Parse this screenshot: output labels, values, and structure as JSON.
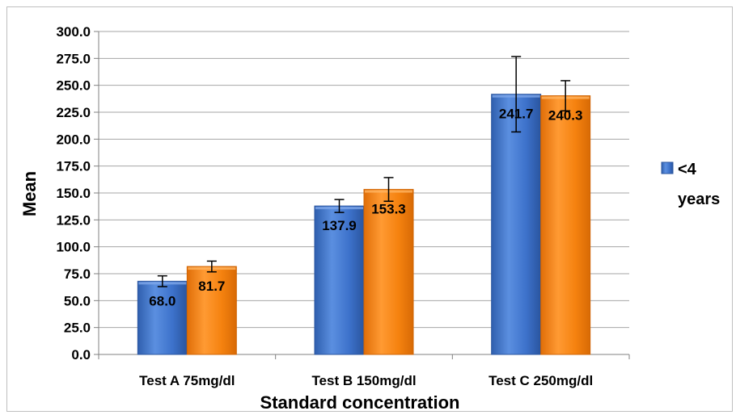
{
  "chart_data": {
    "type": "bar",
    "categories": [
      "Test A 75mg/dl",
      "Test B 150mg/dl",
      "Test C 250mg/dl"
    ],
    "series": [
      {
        "name": "<4 years",
        "values": [
          68.0,
          137.9,
          241.7
        ],
        "error": [
          5.0,
          6.0,
          35.0
        ],
        "color": "#3b6fc4"
      },
      {
        "values": [
          81.7,
          153.3,
          240.3
        ],
        "error": [
          5.0,
          11.0,
          14.0
        ],
        "color": "#f07d12"
      }
    ],
    "value_labels": [
      [
        "68.0",
        "137.9",
        "241.7"
      ],
      [
        "81.7",
        "153.3",
        "240.3"
      ]
    ],
    "xlabel": "Standard concentration",
    "ylabel": "Mean",
    "ylim": [
      0,
      300
    ],
    "yticks": [
      "0.0",
      "25.0",
      "50.0",
      "75.0",
      "100.0",
      "125.0",
      "150.0",
      "175.0",
      "200.0",
      "225.0",
      "250.0",
      "275.0",
      "300.0"
    ],
    "grid": true,
    "legend": {
      "position": "right",
      "label_lines": [
        "<4",
        "years"
      ]
    }
  }
}
